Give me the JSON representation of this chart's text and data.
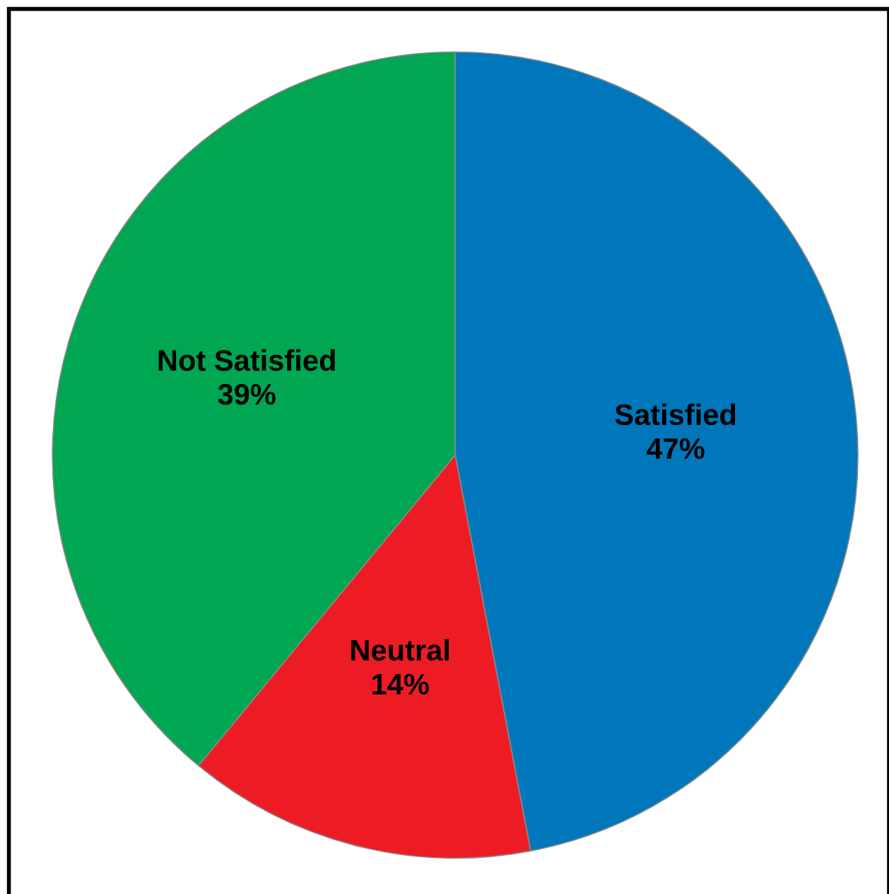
{
  "chart_data": {
    "type": "pie",
    "categories": [
      "Satisfied",
      "Neutral",
      "Not Satisfied"
    ],
    "values": [
      47,
      14,
      39
    ],
    "colors": [
      "#0077bb",
      "#ed1c24",
      "#00a651"
    ],
    "value_labels": [
      "47%",
      "14%",
      "39%"
    ]
  }
}
